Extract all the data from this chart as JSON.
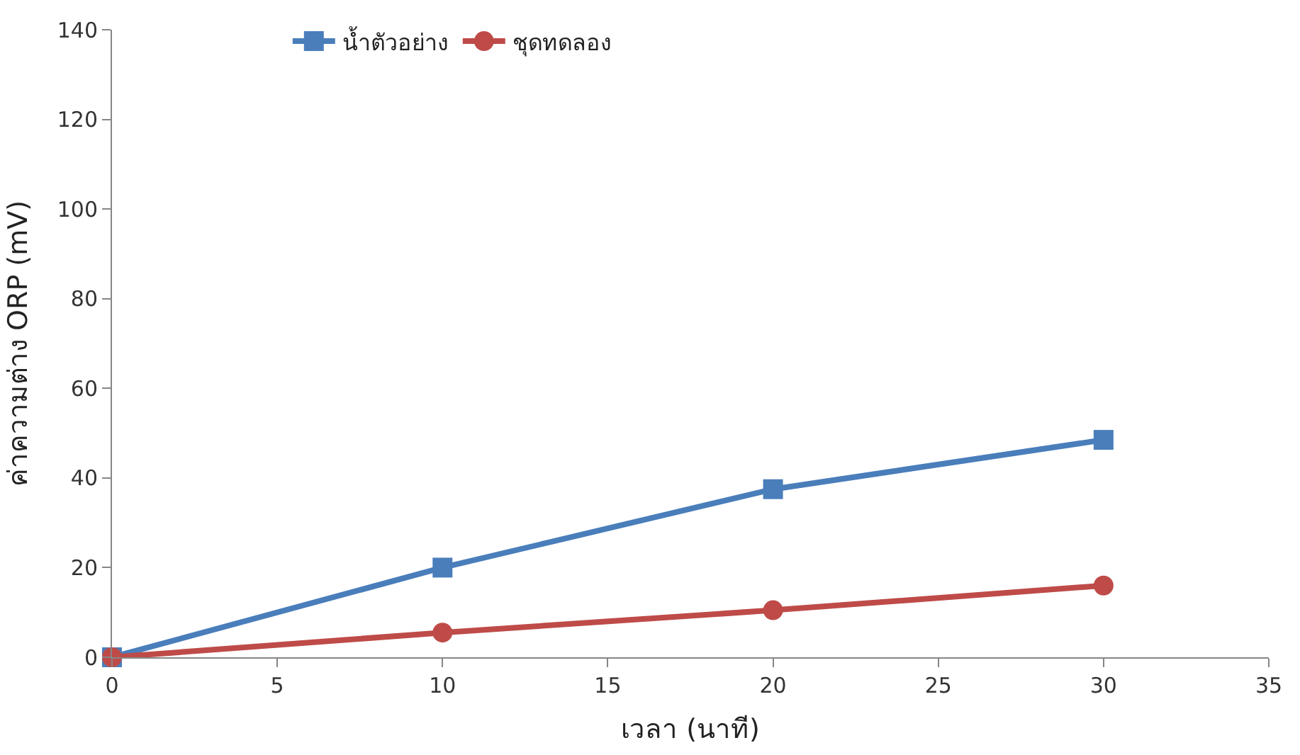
{
  "chart_data": {
    "type": "line",
    "xlabel": "เวลา (นาที)",
    "ylabel": "ค่าความต่าง ORP (mV)",
    "x": [
      0,
      10,
      20,
      30
    ],
    "series": [
      {
        "name": "น้ำตัวอย่าง",
        "color": "#4a7ebb",
        "marker": "square",
        "values": [
          0,
          20,
          37.5,
          48.5
        ]
      },
      {
        "name": "ชุดทดลอง",
        "color": "#be4b48",
        "marker": "circle",
        "values": [
          0,
          5.5,
          10.5,
          16
        ]
      }
    ],
    "xlim": [
      0,
      35
    ],
    "xticks": [
      0,
      5,
      10,
      15,
      20,
      25,
      30,
      35
    ],
    "ylim": [
      0,
      140
    ],
    "yticks": [
      0,
      20,
      40,
      60,
      80,
      100,
      120,
      140
    ],
    "legend": "top",
    "line_style": "solid"
  }
}
